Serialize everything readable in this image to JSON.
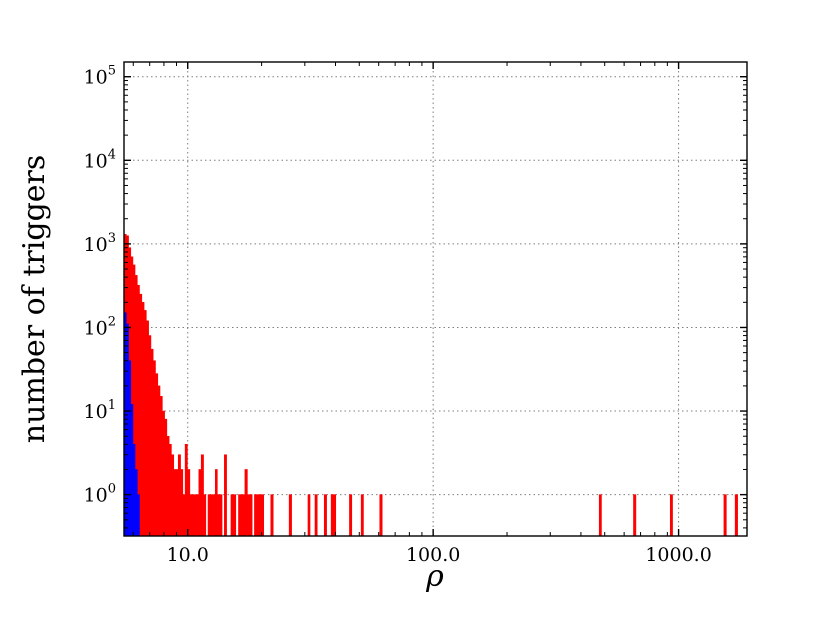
{
  "chart_data": {
    "type": "bar",
    "title": "",
    "xlabel": "ρ",
    "ylabel": "number of triggers",
    "x_scale": "log",
    "y_scale": "log",
    "xlim": [
      5.5,
      1900
    ],
    "ylim": [
      0.32,
      150000
    ],
    "grid": true,
    "grid_style": "dotted",
    "x_ticks": [
      {
        "value": 10,
        "label": "10.0"
      },
      {
        "value": 100,
        "label": "100.0"
      },
      {
        "value": 1000,
        "label": "1000.0"
      }
    ],
    "y_ticks": [
      {
        "value": 1,
        "base": "10",
        "exp": "0"
      },
      {
        "value": 10,
        "base": "10",
        "exp": "1"
      },
      {
        "value": 100,
        "base": "10",
        "exp": "2"
      },
      {
        "value": 1000,
        "base": "10",
        "exp": "3"
      },
      {
        "value": 10000,
        "base": "10",
        "exp": "4"
      },
      {
        "value": 100000,
        "base": "10",
        "exp": "5"
      }
    ],
    "series": [
      {
        "color": "#ff0000",
        "bins": [
          [
            5.5,
            5.62,
            1300
          ],
          [
            5.62,
            5.74,
            1250
          ],
          [
            5.74,
            5.86,
            900
          ],
          [
            5.86,
            5.98,
            700
          ],
          [
            5.98,
            6.1,
            560
          ],
          [
            6.1,
            6.23,
            420
          ],
          [
            6.23,
            6.36,
            320
          ],
          [
            6.36,
            6.5,
            250
          ],
          [
            6.5,
            6.64,
            200
          ],
          [
            6.64,
            6.78,
            160
          ],
          [
            6.78,
            6.93,
            120
          ],
          [
            6.93,
            7.08,
            80
          ],
          [
            7.08,
            7.23,
            55
          ],
          [
            7.23,
            7.39,
            40
          ],
          [
            7.39,
            7.55,
            28
          ],
          [
            7.55,
            7.71,
            20
          ],
          [
            7.71,
            7.88,
            15
          ],
          [
            7.88,
            8.05,
            10
          ],
          [
            8.05,
            8.22,
            8
          ],
          [
            8.22,
            8.4,
            5
          ],
          [
            8.4,
            8.58,
            4
          ],
          [
            8.58,
            8.77,
            3
          ],
          [
            8.77,
            8.96,
            2
          ],
          [
            8.96,
            9.15,
            2
          ],
          [
            9.15,
            9.35,
            3
          ],
          [
            9.35,
            9.55,
            2
          ],
          [
            9.55,
            9.76,
            1
          ],
          [
            9.76,
            9.97,
            4
          ],
          [
            9.97,
            10.2,
            2
          ],
          [
            10.2,
            10.4,
            1
          ],
          [
            10.4,
            10.6,
            1
          ],
          [
            10.6,
            10.9,
            1
          ],
          [
            10.9,
            11.1,
            1
          ],
          [
            11.1,
            11.35,
            2
          ],
          [
            11.35,
            11.6,
            3
          ],
          [
            11.6,
            11.85,
            1
          ],
          [
            12.1,
            12.4,
            1
          ],
          [
            12.4,
            12.65,
            1
          ],
          [
            12.65,
            12.95,
            1
          ],
          [
            12.95,
            13.2,
            2
          ],
          [
            13.2,
            13.5,
            1
          ],
          [
            13.5,
            13.8,
            1
          ],
          [
            14.1,
            14.4,
            3
          ],
          [
            15.0,
            15.4,
            1
          ],
          [
            15.4,
            15.7,
            1
          ],
          [
            16.1,
            16.4,
            1
          ],
          [
            16.4,
            16.8,
            1
          ],
          [
            16.8,
            17.1,
            1
          ],
          [
            17.1,
            17.5,
            2
          ],
          [
            17.5,
            17.9,
            1
          ],
          [
            17.9,
            18.3,
            1
          ],
          [
            18.7,
            19.1,
            1
          ],
          [
            19.1,
            19.5,
            1
          ],
          [
            19.5,
            20,
            1
          ],
          [
            20,
            20.4,
            1
          ],
          [
            21.8,
            22.3,
            1
          ],
          [
            25.9,
            26.5,
            1
          ],
          [
            30.9,
            31.5,
            1
          ],
          [
            33.0,
            33.7,
            1
          ],
          [
            36.0,
            36.8,
            1
          ],
          [
            38.4,
            39.2,
            1
          ],
          [
            39.2,
            40.1,
            1
          ],
          [
            45.6,
            46.6,
            1
          ],
          [
            50.9,
            52.0,
            1
          ],
          [
            60.6,
            62.0,
            1
          ],
          [
            475,
            485,
            1
          ],
          [
            655,
            670,
            1
          ],
          [
            925,
            945,
            1
          ],
          [
            1530,
            1565,
            1
          ],
          [
            1700,
            1740,
            1
          ]
        ]
      },
      {
        "color": "#0000ff",
        "bins": [
          [
            5.5,
            5.62,
            150
          ],
          [
            5.62,
            5.74,
            110
          ],
          [
            5.74,
            5.86,
            40
          ],
          [
            5.86,
            5.98,
            12
          ],
          [
            5.98,
            6.1,
            4
          ],
          [
            6.1,
            6.23,
            2
          ],
          [
            6.23,
            6.36,
            1
          ]
        ]
      }
    ]
  }
}
